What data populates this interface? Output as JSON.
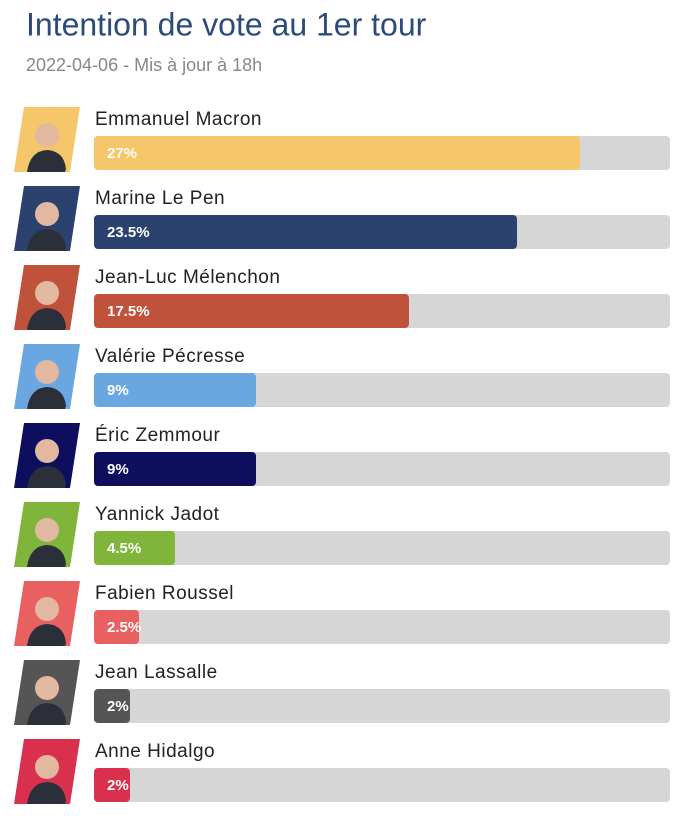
{
  "chart_data": {
    "type": "bar",
    "orientation": "horizontal",
    "title": "Intention de vote au 1er tour",
    "subtitle": "2022-04-06 - Mis à jour à 18h",
    "categories": [
      "Emmanuel Macron",
      "Marine Le Pen",
      "Jean-Luc Mélenchon",
      "Valérie Pécresse",
      "Éric Zemmour",
      "Yannick Jadot",
      "Fabien Roussel",
      "Jean Lassalle",
      "Anne Hidalgo"
    ],
    "values": [
      27,
      23.5,
      17.5,
      9,
      9,
      4.5,
      2.5,
      2,
      2
    ],
    "value_labels": [
      "27%",
      "23.5%",
      "17.5%",
      "9%",
      "9%",
      "4.5%",
      "2.5%",
      "2%",
      "2%"
    ],
    "colors": [
      "#f5c76a",
      "#2c426e",
      "#c0513a",
      "#6aa7e0",
      "#0d0f5e",
      "#7fb53a",
      "#e86060",
      "#555555",
      "#d9304e"
    ],
    "xlim": [
      0,
      32
    ]
  }
}
